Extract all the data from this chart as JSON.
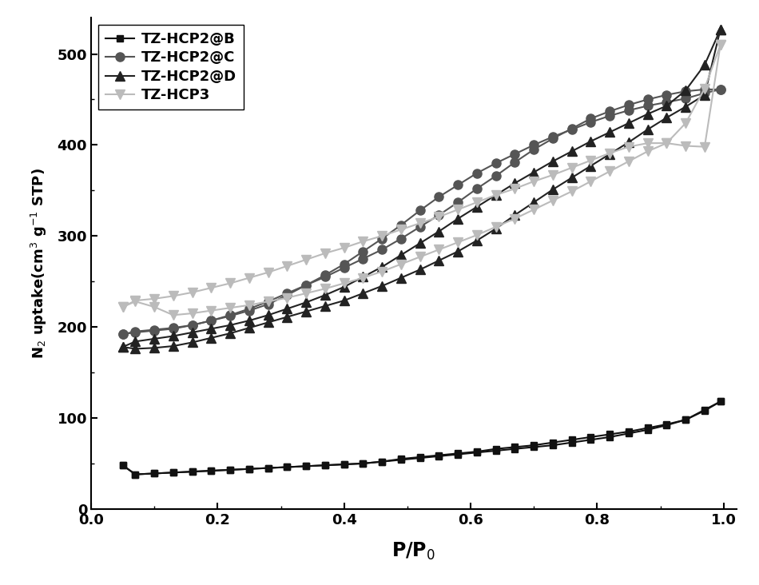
{
  "title": "",
  "xlabel": "P/P$_0$",
  "ylabel": "N$_2$ uptake(cm$^3$ g$^{-1}$ STP)",
  "xlim": [
    0.0,
    1.02
  ],
  "ylim": [
    0,
    540
  ],
  "yticks": [
    0,
    100,
    200,
    300,
    400,
    500
  ],
  "xticks": [
    0.0,
    0.2,
    0.4,
    0.6,
    0.8,
    1.0
  ],
  "figsize": [
    9.5,
    7.32
  ],
  "series": {
    "TZ-HCP2@B": {
      "color": "#111111",
      "marker": "s",
      "markersize": 6,
      "linewidth": 1.5,
      "markevery": 1,
      "adsorption_x": [
        0.05,
        0.07,
        0.1,
        0.13,
        0.16,
        0.19,
        0.22,
        0.25,
        0.28,
        0.31,
        0.34,
        0.37,
        0.4,
        0.43,
        0.46,
        0.49,
        0.52,
        0.55,
        0.58,
        0.61,
        0.64,
        0.67,
        0.7,
        0.73,
        0.76,
        0.79,
        0.82,
        0.85,
        0.88,
        0.91,
        0.94,
        0.97,
        0.995
      ],
      "adsorption_y": [
        48,
        38,
        39,
        40,
        41,
        42,
        43,
        44,
        45,
        46,
        47,
        48,
        49,
        50,
        52,
        54,
        56,
        58,
        60,
        62,
        64,
        66,
        68,
        70,
        73,
        76,
        79,
        83,
        87,
        92,
        98,
        108,
        118
      ],
      "desorption_x": [
        0.995,
        0.97,
        0.94,
        0.91,
        0.88,
        0.85,
        0.82,
        0.79,
        0.76,
        0.73,
        0.7,
        0.67,
        0.64,
        0.61,
        0.58,
        0.55,
        0.52,
        0.49,
        0.46,
        0.43,
        0.4,
        0.37,
        0.34,
        0.31,
        0.28,
        0.25,
        0.22,
        0.19,
        0.16,
        0.13,
        0.1,
        0.07,
        0.05
      ],
      "desorption_y": [
        118,
        109,
        98,
        93,
        89,
        85,
        82,
        79,
        76,
        73,
        70,
        68,
        66,
        63,
        61,
        59,
        57,
        55,
        52,
        50,
        49,
        48,
        47,
        46,
        45,
        44,
        43,
        42,
        41,
        40,
        39,
        38,
        48
      ]
    },
    "TZ-HCP2@C": {
      "color": "#555555",
      "marker": "o",
      "markersize": 8,
      "linewidth": 1.5,
      "adsorption_x": [
        0.05,
        0.07,
        0.1,
        0.13,
        0.16,
        0.19,
        0.22,
        0.25,
        0.28,
        0.31,
        0.34,
        0.37,
        0.4,
        0.43,
        0.46,
        0.49,
        0.52,
        0.55,
        0.58,
        0.61,
        0.64,
        0.67,
        0.7,
        0.73,
        0.76,
        0.79,
        0.82,
        0.85,
        0.88,
        0.91,
        0.94,
        0.97,
        0.995
      ],
      "adsorption_y": [
        192,
        194,
        196,
        198,
        202,
        207,
        213,
        220,
        228,
        237,
        246,
        255,
        265,
        275,
        285,
        297,
        310,
        323,
        337,
        352,
        366,
        381,
        395,
        407,
        418,
        429,
        437,
        444,
        450,
        455,
        459,
        461,
        461
      ],
      "desorption_x": [
        0.995,
        0.97,
        0.94,
        0.91,
        0.88,
        0.85,
        0.82,
        0.79,
        0.76,
        0.73,
        0.7,
        0.67,
        0.64,
        0.61,
        0.58,
        0.55,
        0.52,
        0.49,
        0.46,
        0.43,
        0.4,
        0.37,
        0.34,
        0.31,
        0.28,
        0.25,
        0.22,
        0.19,
        0.16,
        0.13,
        0.1,
        0.07,
        0.05
      ],
      "desorption_y": [
        461,
        457,
        451,
        447,
        443,
        438,
        432,
        425,
        417,
        409,
        400,
        390,
        380,
        369,
        356,
        343,
        328,
        312,
        297,
        283,
        269,
        257,
        246,
        235,
        225,
        218,
        212,
        207,
        202,
        199,
        197,
        195,
        192
      ]
    },
    "TZ-HCP2@D": {
      "color": "#222222",
      "marker": "^",
      "markersize": 8,
      "linewidth": 1.5,
      "adsorption_x": [
        0.05,
        0.07,
        0.1,
        0.13,
        0.16,
        0.19,
        0.22,
        0.25,
        0.28,
        0.31,
        0.34,
        0.37,
        0.4,
        0.43,
        0.46,
        0.49,
        0.52,
        0.55,
        0.58,
        0.61,
        0.64,
        0.67,
        0.7,
        0.73,
        0.76,
        0.79,
        0.82,
        0.85,
        0.88,
        0.91,
        0.94,
        0.97,
        0.995
      ],
      "adsorption_y": [
        178,
        176,
        177,
        179,
        183,
        188,
        193,
        199,
        205,
        211,
        217,
        223,
        229,
        237,
        245,
        254,
        263,
        273,
        283,
        295,
        308,
        323,
        337,
        351,
        364,
        377,
        390,
        403,
        417,
        430,
        442,
        455,
        527
      ],
      "desorption_x": [
        0.995,
        0.97,
        0.94,
        0.91,
        0.88,
        0.85,
        0.82,
        0.79,
        0.76,
        0.73,
        0.7,
        0.67,
        0.64,
        0.61,
        0.58,
        0.55,
        0.52,
        0.49,
        0.46,
        0.43,
        0.4,
        0.37,
        0.34,
        0.31,
        0.28,
        0.25,
        0.22,
        0.19,
        0.16,
        0.13,
        0.1,
        0.07,
        0.05
      ],
      "desorption_y": [
        527,
        488,
        460,
        443,
        434,
        424,
        414,
        404,
        393,
        382,
        370,
        358,
        345,
        332,
        319,
        305,
        292,
        279,
        266,
        255,
        244,
        235,
        227,
        220,
        213,
        207,
        202,
        198,
        194,
        190,
        187,
        184,
        178
      ]
    },
    "TZ-HCP3": {
      "color": "#bbbbbb",
      "marker": "v",
      "markersize": 8,
      "linewidth": 1.5,
      "adsorption_x": [
        0.05,
        0.07,
        0.1,
        0.13,
        0.16,
        0.19,
        0.22,
        0.25,
        0.28,
        0.31,
        0.34,
        0.37,
        0.4,
        0.43,
        0.46,
        0.49,
        0.52,
        0.55,
        0.58,
        0.61,
        0.64,
        0.67,
        0.7,
        0.73,
        0.76,
        0.79,
        0.82,
        0.85,
        0.88,
        0.91,
        0.94,
        0.97,
        0.995
      ],
      "adsorption_y": [
        222,
        229,
        231,
        234,
        238,
        243,
        248,
        254,
        260,
        267,
        274,
        281,
        287,
        294,
        300,
        307,
        314,
        321,
        329,
        337,
        345,
        352,
        360,
        367,
        375,
        383,
        391,
        398,
        402,
        402,
        399,
        398,
        510
      ],
      "desorption_x": [
        0.995,
        0.97,
        0.94,
        0.91,
        0.88,
        0.85,
        0.82,
        0.79,
        0.76,
        0.73,
        0.7,
        0.67,
        0.64,
        0.61,
        0.58,
        0.55,
        0.52,
        0.49,
        0.46,
        0.43,
        0.4,
        0.37,
        0.34,
        0.31,
        0.28,
        0.25,
        0.22,
        0.19,
        0.16,
        0.13,
        0.1,
        0.07,
        0.05
      ],
      "desorption_y": [
        510,
        462,
        424,
        402,
        393,
        382,
        371,
        360,
        349,
        339,
        329,
        319,
        310,
        301,
        293,
        285,
        277,
        269,
        261,
        254,
        248,
        242,
        237,
        232,
        228,
        224,
        221,
        218,
        215,
        213,
        222,
        228,
        222
      ]
    }
  }
}
